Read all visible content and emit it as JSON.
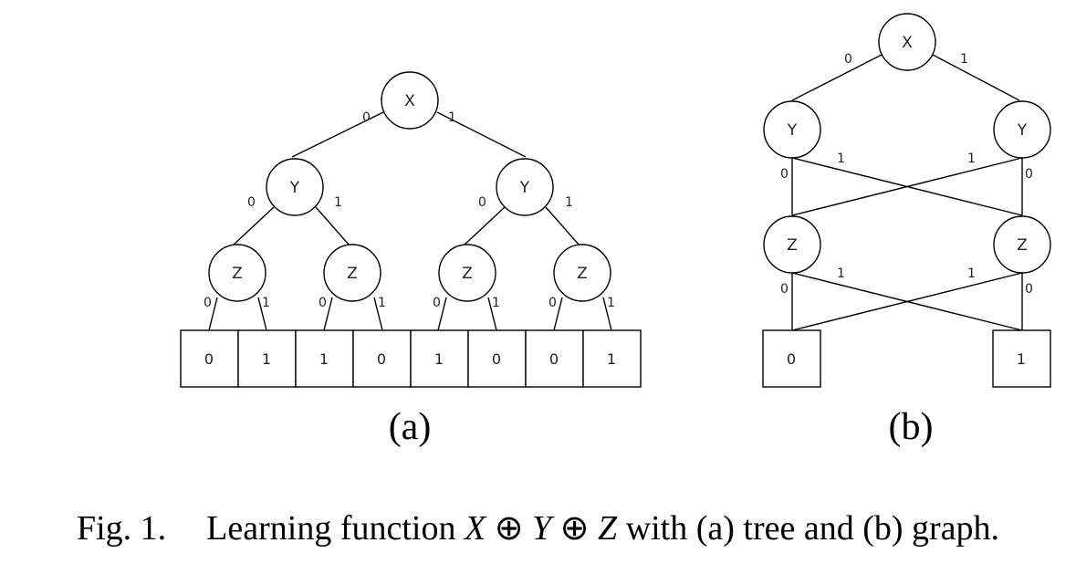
{
  "tree": {
    "root": "X",
    "level1": [
      "Y",
      "Y"
    ],
    "level2": [
      "Z",
      "Z",
      "Z",
      "Z"
    ],
    "edge_labels": {
      "root": [
        "0",
        "1"
      ],
      "level1": [
        "0",
        "1",
        "0",
        "1"
      ],
      "level2": [
        "0",
        "1",
        "0",
        "1",
        "0",
        "1",
        "0",
        "1"
      ]
    },
    "leaves": [
      "0",
      "1",
      "1",
      "0",
      "1",
      "0",
      "0",
      "1"
    ],
    "sublabel": "(a)"
  },
  "graph": {
    "root": "X",
    "y_nodes": [
      "Y",
      "Y"
    ],
    "z_nodes": [
      "Z",
      "Z"
    ],
    "edge_labels": {
      "root": [
        "0",
        "1"
      ],
      "y_cross": [
        "1",
        "1"
      ],
      "y_straight": [
        "0",
        "0"
      ],
      "z_cross": [
        "1",
        "1"
      ],
      "z_straight": [
        "0",
        "0"
      ]
    },
    "terminals": [
      "0",
      "1"
    ],
    "sublabel": "(b)"
  },
  "caption": {
    "fig_label": "Fig. 1.",
    "text_before": "Learning function ",
    "var_x": "X",
    "op1": " ⊕ ",
    "var_y": "Y",
    "op2": " ⊕ ",
    "var_z": "Z",
    "text_after": " with (a) tree and (b) graph."
  }
}
